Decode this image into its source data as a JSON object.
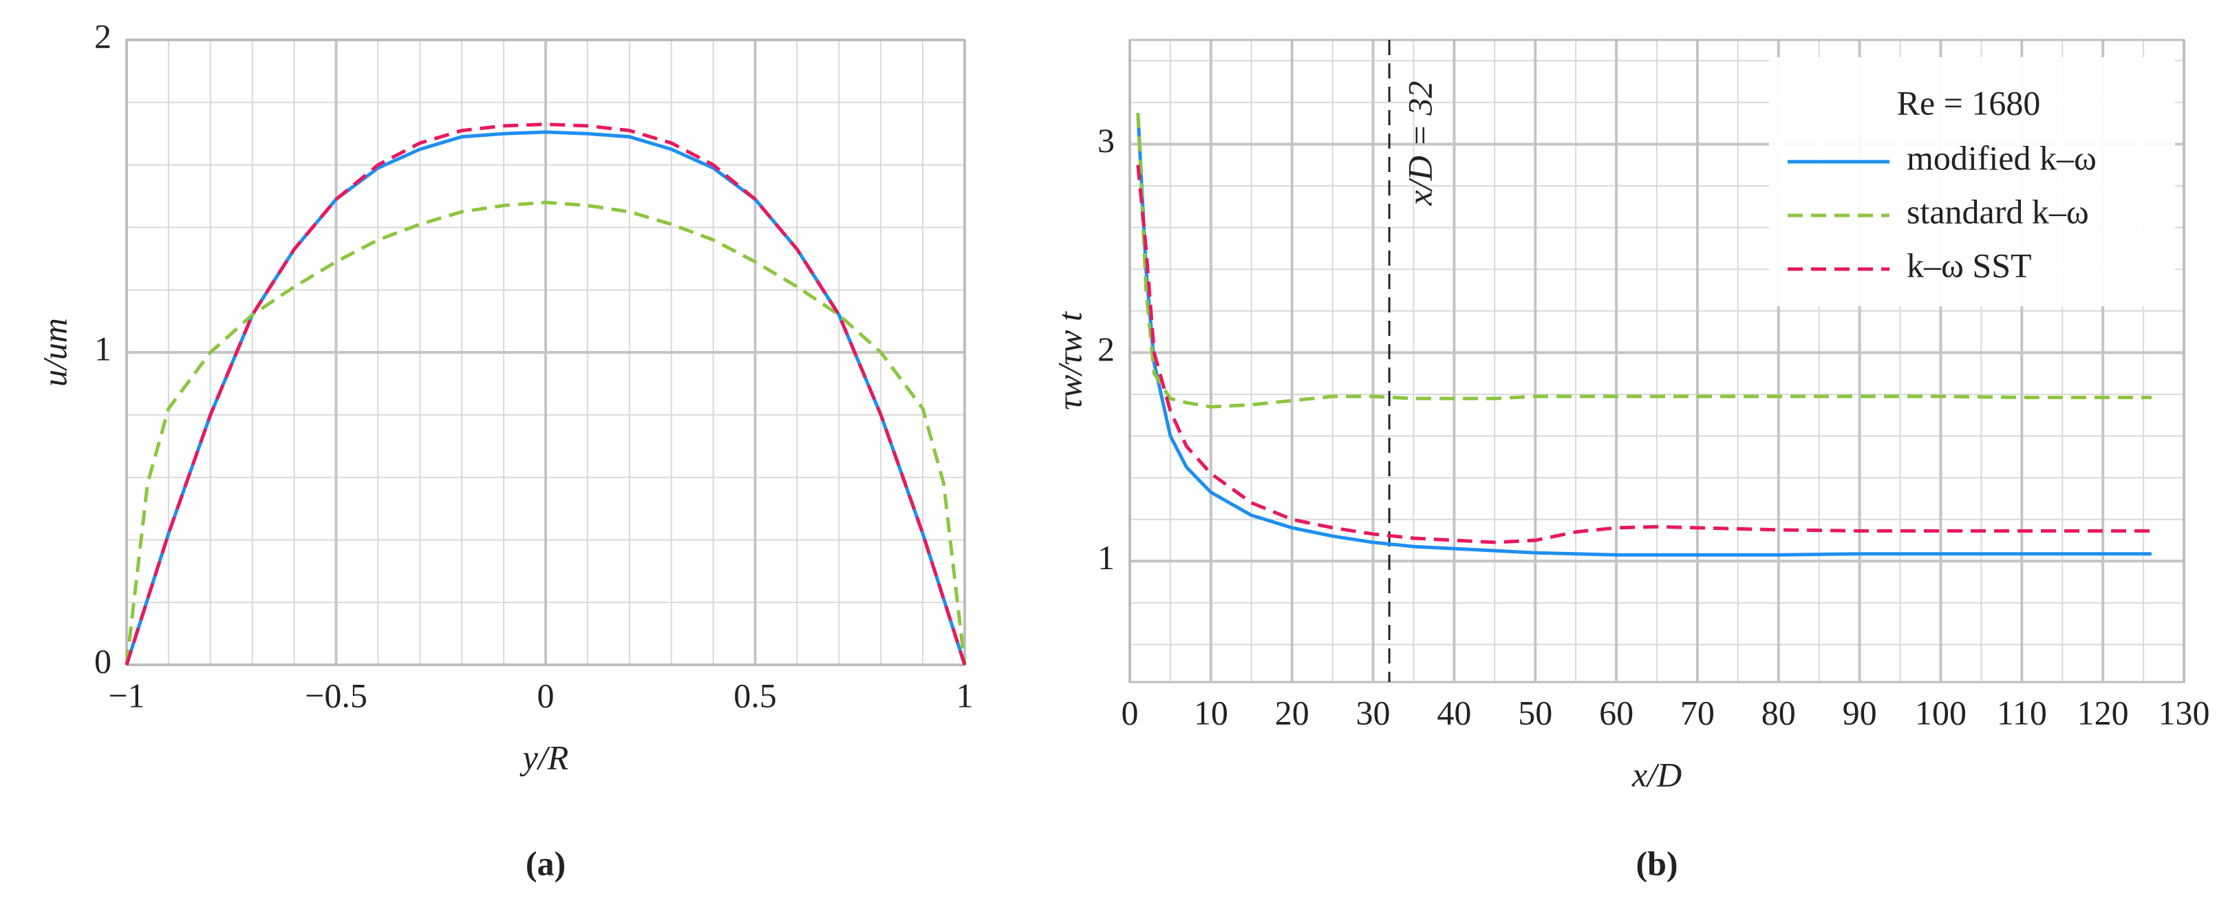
{
  "chart_data": [
    {
      "type": "line",
      "panel_label": "(a)",
      "x_label": "y/R",
      "y_label": "u/um",
      "x": [
        -1,
        -0.95,
        -0.9,
        -0.8,
        -0.7,
        -0.6,
        -0.5,
        -0.4,
        -0.3,
        -0.2,
        -0.1,
        0,
        0.1,
        0.2,
        0.3,
        0.4,
        0.5,
        0.6,
        0.7,
        0.8,
        0.9,
        0.95,
        1
      ],
      "series": [
        {
          "name": "modified k–ω",
          "color": "#1e8ff0",
          "dashed": false,
          "values": [
            0,
            0.21,
            0.42,
            0.8,
            1.12,
            1.33,
            1.49,
            1.59,
            1.65,
            1.69,
            1.7,
            1.705,
            1.7,
            1.69,
            1.65,
            1.59,
            1.49,
            1.33,
            1.12,
            0.8,
            0.42,
            0.21,
            0
          ]
        },
        {
          "name": "standard k–ω",
          "color": "#8cc63f",
          "dashed": true,
          "values": [
            0,
            0.58,
            0.82,
            1.0,
            1.12,
            1.21,
            1.29,
            1.36,
            1.41,
            1.45,
            1.47,
            1.48,
            1.47,
            1.45,
            1.41,
            1.36,
            1.29,
            1.21,
            1.12,
            1.0,
            0.82,
            0.58,
            0
          ]
        },
        {
          "name": "k–ω SST",
          "color": "#e8185f",
          "dashed": true,
          "values": [
            0,
            0.21,
            0.42,
            0.8,
            1.12,
            1.33,
            1.49,
            1.6,
            1.67,
            1.71,
            1.725,
            1.73,
            1.725,
            1.71,
            1.67,
            1.6,
            1.49,
            1.33,
            1.12,
            0.8,
            0.42,
            0.21,
            0
          ]
        }
      ],
      "xlim": [
        -1,
        1
      ],
      "xticks": [
        {
          "value": -1,
          "label": "−1"
        },
        {
          "value": -0.5,
          "label": "−0.5"
        },
        0,
        0.5,
        1
      ],
      "ylim": [
        0,
        2
      ],
      "yticks": [
        0,
        1,
        2
      ],
      "grid": true
    },
    {
      "type": "line",
      "panel_label": "(b)",
      "x_label": "x/D",
      "y_label": "τw/τw t",
      "x": [
        1,
        2,
        3,
        5,
        7,
        10,
        15,
        20,
        25,
        30,
        35,
        40,
        45,
        50,
        55,
        60,
        65,
        70,
        80,
        90,
        100,
        110,
        126
      ],
      "series": [
        {
          "name": "modified k–ω",
          "color": "#1e8ff0",
          "dashed": false,
          "values": [
            3.15,
            2.4,
            1.95,
            1.6,
            1.45,
            1.33,
            1.22,
            1.16,
            1.12,
            1.09,
            1.07,
            1.06,
            1.05,
            1.04,
            1.035,
            1.03,
            1.03,
            1.03,
            1.03,
            1.035,
            1.035,
            1.035,
            1.035
          ]
        },
        {
          "name": "standard k–ω",
          "color": "#8cc63f",
          "dashed": true,
          "values": [
            3.15,
            2.3,
            1.9,
            1.78,
            1.76,
            1.74,
            1.75,
            1.77,
            1.79,
            1.79,
            1.78,
            1.78,
            1.78,
            1.79,
            1.79,
            1.79,
            1.79,
            1.79,
            1.79,
            1.79,
            1.79,
            1.785,
            1.785
          ]
        },
        {
          "name": "k–ω SST",
          "color": "#e8185f",
          "dashed": true,
          "values": [
            2.9,
            2.5,
            2.0,
            1.72,
            1.55,
            1.42,
            1.28,
            1.2,
            1.16,
            1.13,
            1.11,
            1.1,
            1.09,
            1.1,
            1.14,
            1.16,
            1.165,
            1.16,
            1.15,
            1.145,
            1.145,
            1.145,
            1.145
          ]
        }
      ],
      "xlim": [
        0,
        130
      ],
      "xticks": [
        0,
        10,
        20,
        30,
        40,
        50,
        60,
        70,
        80,
        90,
        100,
        110,
        120,
        130
      ],
      "ylim": [
        0.42,
        3.5
      ],
      "yticks": [
        1,
        2,
        3
      ],
      "grid": true,
      "legend": "upper right",
      "legend_title": "Re = 1680",
      "annotations": [
        {
          "x": 32,
          "text": "x/D = 32"
        }
      ]
    }
  ]
}
